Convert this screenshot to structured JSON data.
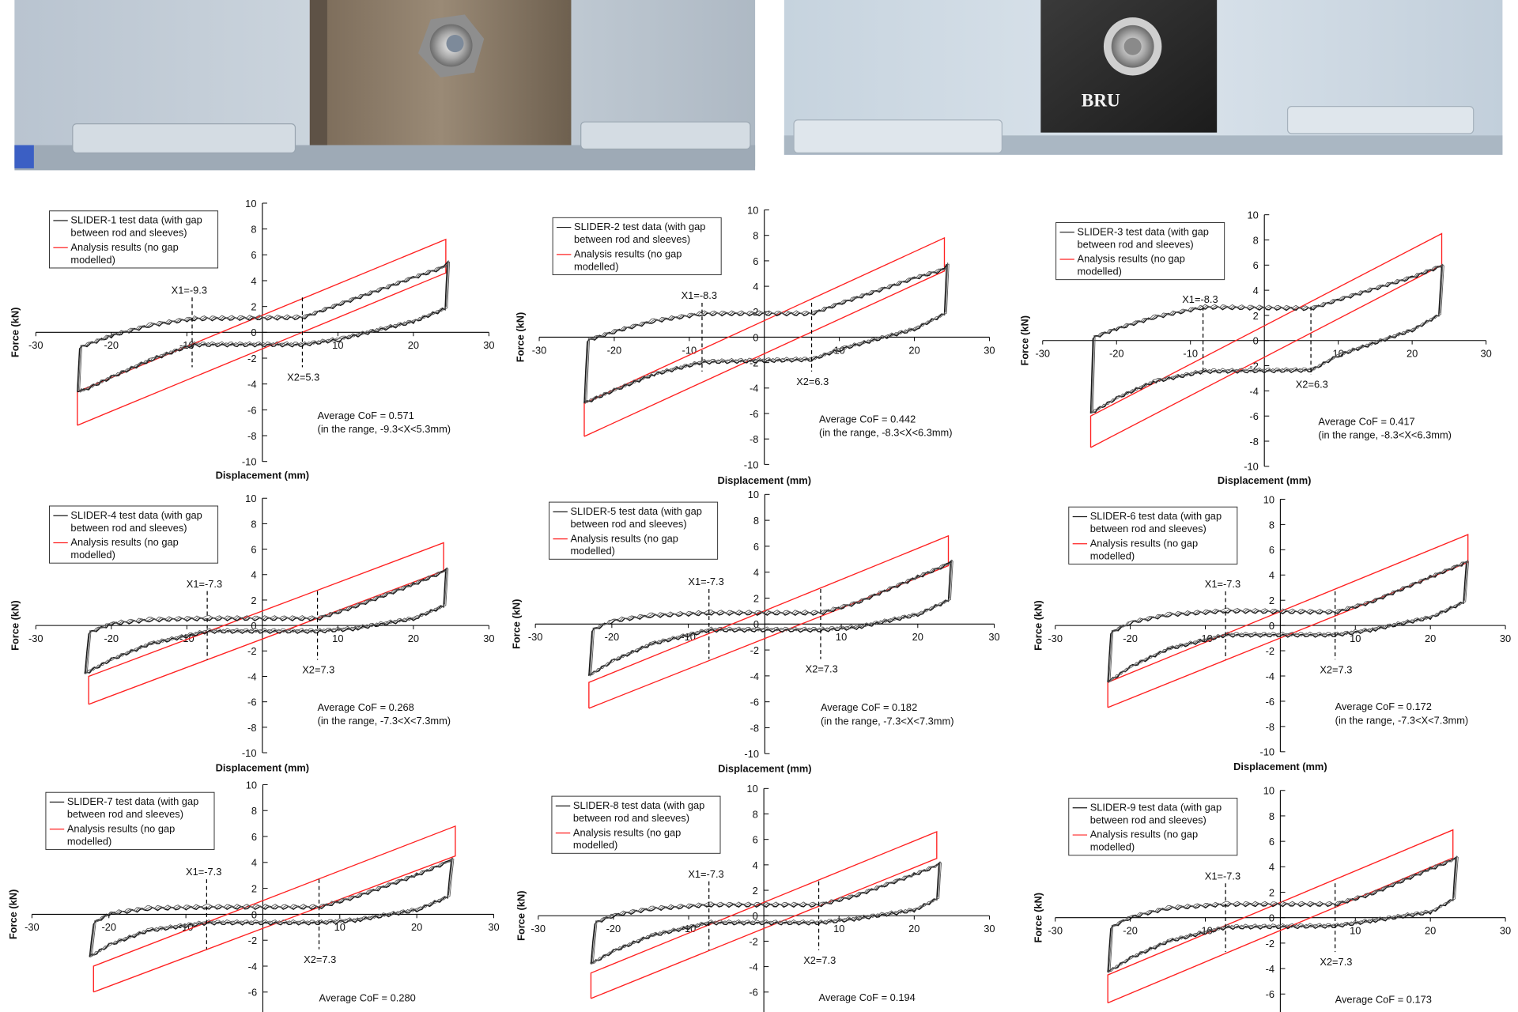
{
  "photos": {
    "right_label": "BRU"
  },
  "colors": {
    "test": "#1a1a1a",
    "analysis": "#ff2020",
    "axis": "#000000"
  },
  "chart_data": [
    {
      "type": "line",
      "xlabel": "Displacement (mm)",
      "ylabel": "Force (kN)",
      "xlim": [
        -30,
        30
      ],
      "ylim": [
        -10,
        10
      ],
      "xticks": [
        -30,
        -20,
        -10,
        10,
        20,
        30
      ],
      "yticks": [
        -10,
        -8,
        -6,
        -4,
        -2,
        0,
        2,
        4,
        6,
        8,
        10
      ],
      "zero_label": "0",
      "legend": {
        "test": [
          "SLIDER-1 test data (with gap",
          "between rod and sleeves)"
        ],
        "analysis": [
          "Analysis results (no gap",
          "modelled)"
        ]
      },
      "x1_label": "X1=-9.3",
      "x2_label": "X2=5.3",
      "x1": -9.3,
      "x2": 5.3,
      "cof": "Average CoF = 0.571",
      "range": "(in the range, -9.3<X<5.3mm)",
      "test": [
        [
          -24.5,
          -4.6
        ],
        [
          -24.2,
          -1.2
        ],
        [
          -20,
          -0.3
        ],
        [
          -15,
          0.5
        ],
        [
          -9.3,
          1.0
        ],
        [
          5.3,
          1.1
        ],
        [
          10,
          2.1
        ],
        [
          20,
          4.2
        ],
        [
          24,
          5.0
        ],
        [
          24.5,
          5.4
        ],
        [
          24.2,
          1.8
        ],
        [
          20,
          0.8
        ],
        [
          10,
          -0.6
        ],
        [
          5.3,
          -1.0
        ],
        [
          -9.3,
          -1.0
        ],
        [
          -15,
          -2.2
        ],
        [
          -20,
          -3.5
        ],
        [
          -24,
          -4.6
        ]
      ],
      "analysis": [
        [
          -24.5,
          -7.2
        ],
        [
          -24.5,
          -4.6
        ],
        [
          24.3,
          7.2
        ],
        [
          24.3,
          4.6
        ],
        [
          -24.5,
          -7.2
        ]
      ]
    },
    {
      "type": "line",
      "xlabel": "Displacement (mm)",
      "ylabel": "Force (kN)",
      "xlim": [
        -30,
        30
      ],
      "ylim": [
        -10,
        10
      ],
      "xticks": [
        -30,
        -20,
        -10,
        10,
        20,
        30
      ],
      "yticks": [
        -10,
        -8,
        -6,
        -4,
        -2,
        0,
        2,
        4,
        6,
        8,
        10
      ],
      "zero_label": "0",
      "legend": {
        "test": [
          "SLIDER-2 test data (with gap",
          "between rod and sleeves)"
        ],
        "analysis": [
          "Analysis results (no gap",
          "modelled)"
        ]
      },
      "x1_label": "X1=-8.3",
      "x2_label": "X2=6.3",
      "x1": -8.3,
      "x2": 6.3,
      "cof": "Average CoF = 0.442",
      "range": "(in the range, -8.3<X<6.3mm)",
      "test": [
        [
          -24,
          -5.2
        ],
        [
          -23.6,
          -0.3
        ],
        [
          -20,
          0.4
        ],
        [
          -15,
          1.2
        ],
        [
          -8.3,
          1.8
        ],
        [
          6.3,
          1.8
        ],
        [
          10,
          2.6
        ],
        [
          20,
          4.6
        ],
        [
          24,
          5.3
        ],
        [
          24.3,
          5.7
        ],
        [
          24,
          1.8
        ],
        [
          20,
          0.6
        ],
        [
          10,
          -1.0
        ],
        [
          6.3,
          -1.8
        ],
        [
          -8.3,
          -2.0
        ],
        [
          -15,
          -3.0
        ],
        [
          -20,
          -4.2
        ],
        [
          -24,
          -5.2
        ]
      ],
      "analysis": [
        [
          -24,
          -7.8
        ],
        [
          -24,
          -5.2
        ],
        [
          24,
          7.8
        ],
        [
          24,
          5.2
        ],
        [
          -24,
          -7.8
        ]
      ]
    },
    {
      "type": "line",
      "xlabel": "Displacement (mm)",
      "ylabel": "Force (kN)",
      "xlim": [
        -30,
        30
      ],
      "ylim": [
        -10,
        10
      ],
      "xticks": [
        -30,
        -20,
        -10,
        10,
        20,
        30
      ],
      "yticks": [
        -10,
        -8,
        -6,
        -4,
        -2,
        0,
        2,
        4,
        6,
        8,
        10
      ],
      "zero_label": "0",
      "legend": {
        "test": [
          "SLIDER-3 test data (with gap",
          "between rod and sleeves)"
        ],
        "analysis": [
          "Analysis results (no gap",
          "modelled)"
        ]
      },
      "x1_label": "X1=-8.3",
      "x2_label": "X2=6.3",
      "x1": -8.3,
      "x2": 6.3,
      "cof": "Average CoF = 0.417",
      "range": "(in the range, -8.3<X<6.3mm)",
      "test": [
        [
          -23.5,
          -5.8
        ],
        [
          -23.2,
          0.2
        ],
        [
          -20,
          0.9
        ],
        [
          -15,
          1.8
        ],
        [
          -8.3,
          2.6
        ],
        [
          6.3,
          2.5
        ],
        [
          10,
          3.2
        ],
        [
          20,
          5.0
        ],
        [
          23.5,
          5.8
        ],
        [
          24,
          5.9
        ],
        [
          23.6,
          2.0
        ],
        [
          20,
          0.8
        ],
        [
          10,
          -1.2
        ],
        [
          6.3,
          -2.4
        ],
        [
          -8.3,
          -2.5
        ],
        [
          -15,
          -3.3
        ],
        [
          -20,
          -4.6
        ],
        [
          -23.5,
          -5.8
        ]
      ],
      "analysis": [
        [
          -23.5,
          -8.5
        ],
        [
          -23.5,
          -6.0
        ],
        [
          24,
          8.5
        ],
        [
          24,
          6.0
        ],
        [
          -23.5,
          -8.5
        ]
      ]
    },
    {
      "type": "line",
      "xlabel": "Displacement (mm)",
      "ylabel": "Force (kN)",
      "xlim": [
        -30,
        30
      ],
      "ylim": [
        -10,
        10
      ],
      "xticks": [
        -30,
        -20,
        -10,
        10,
        20,
        30
      ],
      "yticks": [
        -10,
        -8,
        -6,
        -4,
        -2,
        0,
        2,
        4,
        6,
        8,
        10
      ],
      "zero_label": "0",
      "legend": {
        "test": [
          "SLIDER-4 test data (with gap",
          "between rod and sleeves)"
        ],
        "analysis": [
          "Analysis results (no gap",
          "modelled)"
        ]
      },
      "x1_label": "X1=-7.3",
      "x2_label": "X2=7.3",
      "x1": -7.3,
      "x2": 7.3,
      "cof": "Average CoF = 0.268",
      "range": "(in the range, -7.3<X<7.3mm)",
      "test": [
        [
          -23.5,
          -3.8
        ],
        [
          -23,
          -0.6
        ],
        [
          -20,
          0.1
        ],
        [
          -15,
          0.4
        ],
        [
          -7.3,
          0.5
        ],
        [
          7.3,
          0.5
        ],
        [
          12,
          1.4
        ],
        [
          20,
          3.2
        ],
        [
          24,
          4.2
        ],
        [
          24.3,
          4.4
        ],
        [
          24,
          1.5
        ],
        [
          20,
          0.5
        ],
        [
          12,
          -0.3
        ],
        [
          7.3,
          -0.5
        ],
        [
          -7.3,
          -0.5
        ],
        [
          -15,
          -1.5
        ],
        [
          -20,
          -2.7
        ],
        [
          -23.5,
          -3.8
        ]
      ],
      "analysis": [
        [
          -23,
          -6.2
        ],
        [
          -23,
          -4.0
        ],
        [
          24,
          6.5
        ],
        [
          24,
          4.3
        ],
        [
          -23,
          -6.2
        ]
      ]
    },
    {
      "type": "line",
      "xlabel": "Displacement (mm)",
      "ylabel": "Force (kN)",
      "xlim": [
        -30,
        30
      ],
      "ylim": [
        -10,
        10
      ],
      "xticks": [
        -30,
        -20,
        -10,
        10,
        20,
        30
      ],
      "yticks": [
        -10,
        -8,
        -6,
        -4,
        -2,
        0,
        2,
        4,
        6,
        8,
        10
      ],
      "zero_label": "0",
      "legend": {
        "test": [
          "SLIDER-5 test data (with gap",
          "between rod and sleeves)"
        ],
        "analysis": [
          "Analysis results (no gap",
          "modelled)"
        ]
      },
      "x1_label": "X1=-7.3",
      "x2_label": "X2=7.3",
      "x1": -7.3,
      "x2": 7.3,
      "cof": "Average CoF = 0.182",
      "range": "(in the range, -7.3<X<7.3mm)",
      "test": [
        [
          -23,
          -4.0
        ],
        [
          -22.6,
          -0.5
        ],
        [
          -20,
          0.2
        ],
        [
          -15,
          0.6
        ],
        [
          -7.3,
          0.8
        ],
        [
          7.3,
          0.8
        ],
        [
          12,
          1.6
        ],
        [
          20,
          3.6
        ],
        [
          24,
          4.6
        ],
        [
          24.3,
          4.8
        ],
        [
          24,
          1.8
        ],
        [
          20,
          0.7
        ],
        [
          12,
          -0.3
        ],
        [
          7.3,
          -0.5
        ],
        [
          -7.3,
          -0.5
        ],
        [
          -15,
          -1.6
        ],
        [
          -20,
          -2.9
        ],
        [
          -23,
          -4.0
        ]
      ],
      "analysis": [
        [
          -23,
          -6.5
        ],
        [
          -23,
          -4.5
        ],
        [
          24,
          6.8
        ],
        [
          24,
          4.5
        ],
        [
          -23,
          -6.5
        ]
      ]
    },
    {
      "type": "line",
      "xlabel": "Displacement (mm)",
      "ylabel": "Force (kN)",
      "xlim": [
        -30,
        30
      ],
      "ylim": [
        -10,
        10
      ],
      "xticks": [
        -30,
        -20,
        -10,
        10,
        20,
        30
      ],
      "yticks": [
        -10,
        -8,
        -6,
        -4,
        -2,
        0,
        2,
        4,
        6,
        8,
        10
      ],
      "zero_label": "0",
      "legend": {
        "test": [
          "SLIDER-6 test data (with gap",
          "between rod and sleeves)"
        ],
        "analysis": [
          "Analysis results (no gap",
          "modelled)"
        ]
      },
      "x1_label": "X1=-7.3",
      "x2_label": "X2=7.3",
      "x1": -7.3,
      "x2": 7.3,
      "cof": "Average CoF = 0.172",
      "range": "(in the range, -7.3<X<7.3mm)",
      "test": [
        [
          -23,
          -4.5
        ],
        [
          -22.6,
          -0.6
        ],
        [
          -20,
          0.2
        ],
        [
          -15,
          0.8
        ],
        [
          -7.3,
          1.1
        ],
        [
          7.3,
          1.0
        ],
        [
          12,
          1.8
        ],
        [
          20,
          3.8
        ],
        [
          24.5,
          4.9
        ],
        [
          24.8,
          5.0
        ],
        [
          24.4,
          1.8
        ],
        [
          20,
          0.6
        ],
        [
          12,
          -0.4
        ],
        [
          7.3,
          -0.8
        ],
        [
          -7.3,
          -0.8
        ],
        [
          -15,
          -1.9
        ],
        [
          -20,
          -3.3
        ],
        [
          -23,
          -4.5
        ]
      ],
      "analysis": [
        [
          -23,
          -6.5
        ],
        [
          -23,
          -4.5
        ],
        [
          25,
          7.2
        ],
        [
          25,
          5.0
        ],
        [
          -23,
          -6.5
        ]
      ]
    },
    {
      "type": "line",
      "xlabel": "",
      "ylabel": "Force (kN)",
      "xlim": [
        -30,
        30
      ],
      "ylim": [
        -10,
        10
      ],
      "xticks": [
        -30,
        -20,
        -10,
        10,
        20,
        30
      ],
      "yticks": [
        -6,
        -4,
        -2,
        0,
        2,
        4,
        6,
        8,
        10
      ],
      "zero_label": "0",
      "legend": {
        "test": [
          "SLIDER-7 test data (with gap",
          "between rod and sleeves)"
        ],
        "analysis": [
          "Analysis results (no gap",
          "modelled)"
        ]
      },
      "x1_label": "X1=-7.3",
      "x2_label": "X2=7.3",
      "x1": -7.3,
      "x2": 7.3,
      "cof": "Average CoF = 0.280",
      "range": "",
      "test": [
        [
          -22.5,
          -3.3
        ],
        [
          -22,
          -0.7
        ],
        [
          -20,
          0.0
        ],
        [
          -15,
          0.4
        ],
        [
          -7.3,
          0.5
        ],
        [
          7.3,
          0.5
        ],
        [
          12,
          1.3
        ],
        [
          20,
          3.0
        ],
        [
          24,
          4.0
        ],
        [
          24.5,
          4.2
        ],
        [
          24,
          1.3
        ],
        [
          20,
          0.3
        ],
        [
          12,
          -0.5
        ],
        [
          7.3,
          -0.7
        ],
        [
          -7.3,
          -0.7
        ],
        [
          -15,
          -1.3
        ],
        [
          -20,
          -2.4
        ],
        [
          -22.5,
          -3.3
        ]
      ],
      "analysis": [
        [
          -22,
          -6.0
        ],
        [
          -22,
          -4.0
        ],
        [
          25,
          6.8
        ],
        [
          25,
          4.5
        ],
        [
          -22,
          -6.0
        ]
      ]
    },
    {
      "type": "line",
      "xlabel": "",
      "ylabel": "Force (kN)",
      "xlim": [
        -30,
        30
      ],
      "ylim": [
        -10,
        10
      ],
      "xticks": [
        -30,
        -20,
        -10,
        10,
        20,
        30
      ],
      "yticks": [
        -6,
        -4,
        -2,
        0,
        2,
        4,
        6,
        8,
        10
      ],
      "zero_label": "0",
      "legend": {
        "test": [
          "SLIDER-8 test data (with gap",
          "between rod and sleeves)"
        ],
        "analysis": [
          "Analysis results (no gap",
          "modelled)"
        ]
      },
      "x1_label": "X1=-7.3",
      "x2_label": "X2=7.3",
      "x1": -7.3,
      "x2": 7.3,
      "cof": "Average CoF = 0.194",
      "range": "",
      "test": [
        [
          -23,
          -3.8
        ],
        [
          -22.5,
          -0.6
        ],
        [
          -20,
          0.0
        ],
        [
          -15,
          0.5
        ],
        [
          -7.3,
          0.8
        ],
        [
          7.3,
          0.8
        ],
        [
          12,
          1.5
        ],
        [
          20,
          3.2
        ],
        [
          23,
          3.9
        ],
        [
          23.3,
          4.1
        ],
        [
          23,
          1.3
        ],
        [
          20,
          0.4
        ],
        [
          12,
          -0.3
        ],
        [
          7.3,
          -0.6
        ],
        [
          -7.3,
          -0.6
        ],
        [
          -15,
          -1.6
        ],
        [
          -20,
          -2.8
        ],
        [
          -23,
          -3.8
        ]
      ],
      "analysis": [
        [
          -23,
          -6.5
        ],
        [
          -23,
          -4.5
        ],
        [
          23,
          6.6
        ],
        [
          23,
          4.5
        ],
        [
          -23,
          -6.5
        ]
      ]
    },
    {
      "type": "line",
      "xlabel": "",
      "ylabel": "Force (kN)",
      "xlim": [
        -30,
        30
      ],
      "ylim": [
        -10,
        10
      ],
      "xticks": [
        -30,
        -20,
        -10,
        10,
        20,
        30
      ],
      "yticks": [
        -6,
        -4,
        -2,
        0,
        2,
        4,
        6,
        8,
        10
      ],
      "zero_label": "0",
      "legend": {
        "test": [
          "SLIDER-9 test data (with gap",
          "between rod and sleeves)"
        ],
        "analysis": [
          "Analysis results (no gap",
          "modelled)"
        ]
      },
      "x1_label": "X1=-7.3",
      "x2_label": "X2=7.3",
      "x1": -7.3,
      "x2": 7.3,
      "cof": "Average CoF = 0.173",
      "range": "",
      "test": [
        [
          -23,
          -4.3
        ],
        [
          -22.6,
          -0.8
        ],
        [
          -20,
          0.0
        ],
        [
          -15,
          0.7
        ],
        [
          -7.3,
          1.0
        ],
        [
          7.3,
          1.0
        ],
        [
          12,
          1.8
        ],
        [
          20,
          3.8
        ],
        [
          23,
          4.5
        ],
        [
          23.4,
          4.7
        ],
        [
          23,
          1.4
        ],
        [
          20,
          0.4
        ],
        [
          12,
          -0.3
        ],
        [
          7.3,
          -0.7
        ],
        [
          -7.3,
          -0.8
        ],
        [
          -15,
          -1.9
        ],
        [
          -20,
          -3.2
        ],
        [
          -23,
          -4.3
        ]
      ],
      "analysis": [
        [
          -23,
          -6.7
        ],
        [
          -23,
          -4.5
        ],
        [
          23,
          6.9
        ],
        [
          23,
          4.7
        ],
        [
          -23,
          -6.7
        ]
      ]
    }
  ]
}
